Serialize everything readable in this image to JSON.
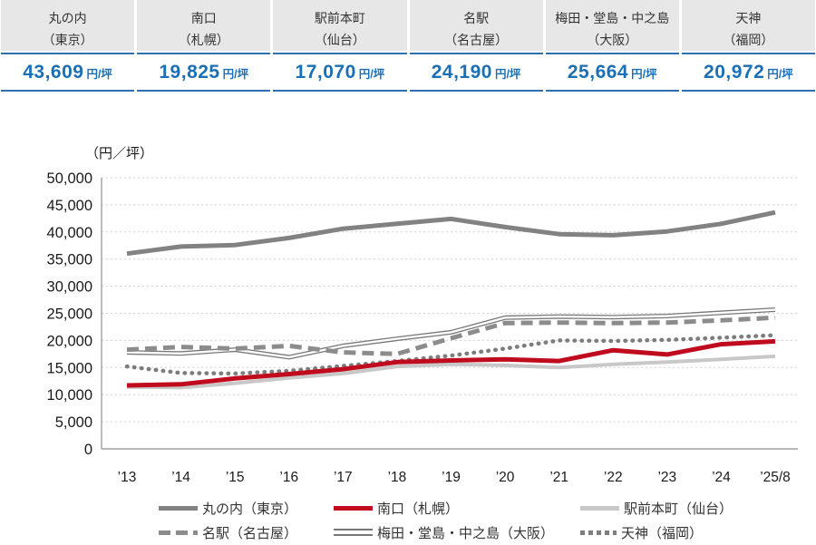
{
  "summary": {
    "unit_label": "円/坪",
    "cards": [
      {
        "station": "丸の内",
        "city": "（東京）",
        "value": "43,609"
      },
      {
        "station": "南口",
        "city": "（札幌）",
        "value": "19,825"
      },
      {
        "station": "駅前本町",
        "city": "（仙台）",
        "value": "17,070"
      },
      {
        "station": "名駅",
        "city": "（名古屋）",
        "value": "24,190"
      },
      {
        "station": "梅田・堂島・中之島",
        "city": "（大阪）",
        "value": "25,664"
      },
      {
        "station": "天神",
        "city": "（福岡）",
        "value": "20,972"
      }
    ]
  },
  "chart_data": {
    "type": "line",
    "title": "",
    "ylabel": "（円／坪）",
    "xlabel": "",
    "ylim": [
      0,
      50000
    ],
    "ytick_step": 5000,
    "ytick_labels": [
      "0",
      "5,000",
      "10,000",
      "15,000",
      "20,000",
      "25,000",
      "30,000",
      "35,000",
      "40,000",
      "45,000",
      "50,000"
    ],
    "grid": "horizontal-dotted",
    "legend_position": "bottom",
    "categories": [
      "’13",
      "’14",
      "’15",
      "’16",
      "’17",
      "’18",
      "’19",
      "’20",
      "’21",
      "’22",
      "’23",
      "’24",
      "’25/8"
    ],
    "series": [
      {
        "name": "丸の内（東京）",
        "key": "marunouchi",
        "color": "#828282",
        "style": "solid",
        "width": 5,
        "values": [
          36000,
          37300,
          37600,
          38900,
          40600,
          41500,
          42400,
          40900,
          39600,
          39400,
          40100,
          41500,
          43609
        ]
      },
      {
        "name": "南口（札幌）",
        "key": "minamiguchi",
        "color": "#c00a1e",
        "style": "solid",
        "width": 5,
        "values": [
          11700,
          11900,
          13000,
          13800,
          14700,
          16000,
          16300,
          16500,
          16200,
          18200,
          17400,
          19300,
          19825
        ]
      },
      {
        "name": "駅前本町（仙台）",
        "key": "ekimae-honcho",
        "color": "#c8c8c8",
        "style": "solid",
        "width": 4,
        "values": [
          11400,
          11300,
          12100,
          13100,
          13900,
          15200,
          15600,
          15400,
          15000,
          15600,
          16000,
          16500,
          17070
        ]
      },
      {
        "name": "名駅（名古屋）",
        "key": "meieki",
        "color": "#8c8c8c",
        "style": "dashed",
        "width": 5,
        "values": [
          18300,
          18800,
          18500,
          19000,
          17800,
          17500,
          20400,
          23200,
          23300,
          23200,
          23300,
          23700,
          24190
        ]
      },
      {
        "name": "梅田・堂島・中之島（大阪）",
        "key": "umeda",
        "color": "#787878",
        "style": "double",
        "width": 5,
        "values": [
          17800,
          17600,
          18300,
          16900,
          19000,
          20300,
          21500,
          24200,
          24400,
          24300,
          24500,
          25100,
          25664
        ]
      },
      {
        "name": "天神（福岡）",
        "key": "tenjin",
        "color": "#7d7d7d",
        "style": "dotted",
        "width": 4.5,
        "values": [
          15200,
          14000,
          13900,
          14400,
          15300,
          16200,
          17200,
          18500,
          20000,
          19900,
          20100,
          20500,
          20972
        ]
      }
    ]
  },
  "colors": {
    "header_bg": "#e7e7e7",
    "value_text": "#1b6fb5",
    "value_border": "#2d70ad",
    "gridline": "#d0d0d0",
    "axis": "#a0a0a0",
    "tick_text": "#1a1a1a"
  }
}
